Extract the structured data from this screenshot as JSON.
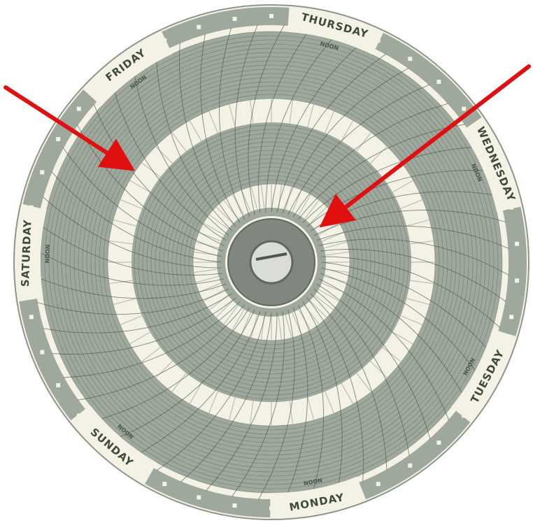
{
  "chart": {
    "days": [
      "THURSDAY",
      "WEDNESDAY",
      "TUESDAY",
      "MONDAY",
      "SUNDAY",
      "SATURDAY",
      "FRIDAY"
    ],
    "noon_label": "NOON"
  },
  "colors": {
    "background": "#ffffff",
    "paper": "#f3f2e4",
    "grid_fill": "#9ea89c",
    "grid_line": "#4d574d",
    "hub": "#7f877f",
    "arrow": "#e01010"
  },
  "annotations": [
    {
      "name": "arrow-outer-band",
      "points_to": "outer white band"
    },
    {
      "name": "arrow-inner-band",
      "points_to": "inner white band"
    }
  ]
}
